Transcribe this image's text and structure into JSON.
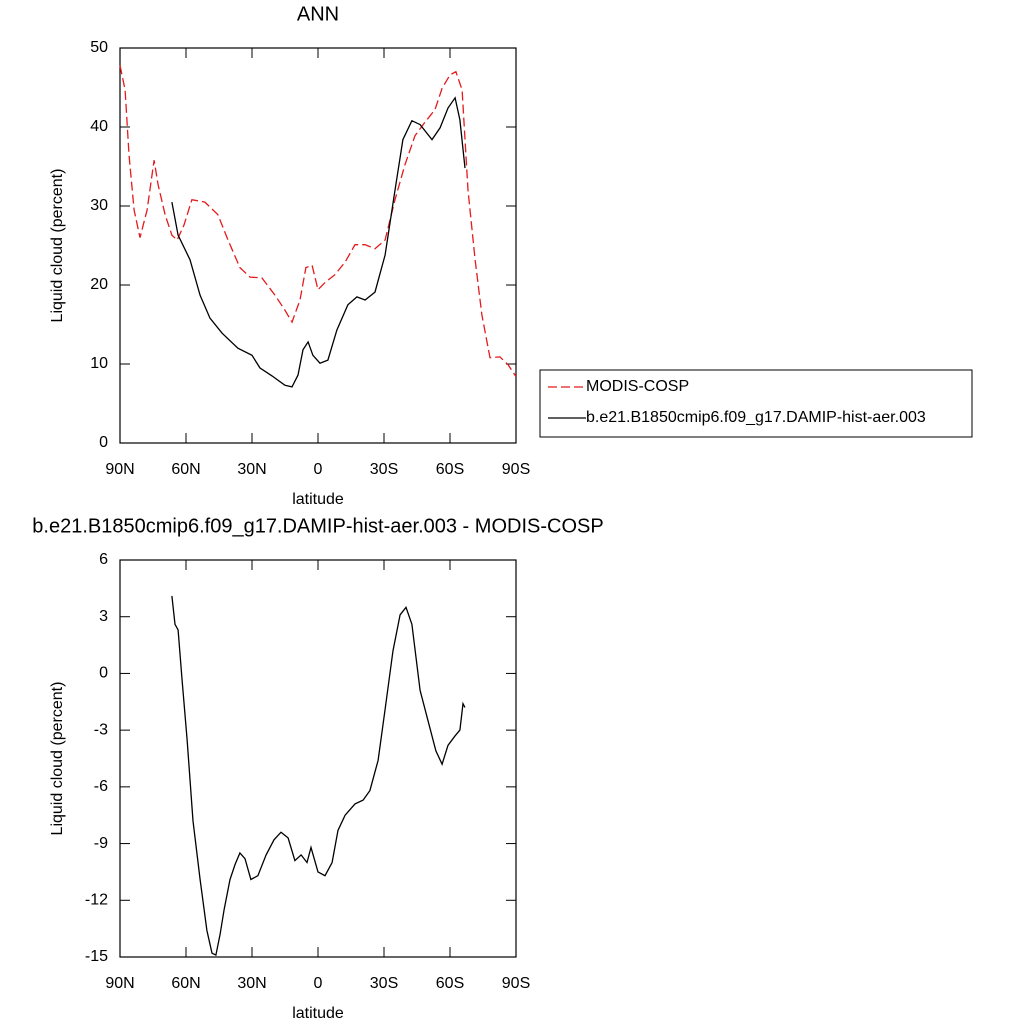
{
  "chart_data": [
    {
      "type": "line",
      "title": "ANN",
      "xlabel": "latitude",
      "ylabel": "Liquid cloud (percent)",
      "xlim": [
        90,
        -90
      ],
      "ylim": [
        0,
        50
      ],
      "xticks": [
        {
          "value": 90,
          "label": "90N"
        },
        {
          "value": 60,
          "label": "60N"
        },
        {
          "value": 30,
          "label": "30N"
        },
        0,
        {
          "value": -30,
          "label": "30S"
        },
        {
          "value": -60,
          "label": "60S"
        },
        {
          "value": -90,
          "label": "90S"
        }
      ],
      "yticks": [
        0,
        10,
        20,
        30,
        40,
        50
      ],
      "legend": "right",
      "series": [
        {
          "name": "MODIS-COSP",
          "color": "#e41a1c",
          "dash": true,
          "x": [
            90,
            87.7,
            85.9,
            83.6,
            80.9,
            77.7,
            74.5,
            72.7,
            69.5,
            66.4,
            64,
            60.9,
            57.3,
            51.4,
            45.5,
            40.9,
            35.5,
            30.9,
            25.5,
            19.5,
            15,
            11.8,
            8.2,
            5.5,
            2.7,
            0,
            -3.2,
            -7.7,
            -12.3,
            -16.8,
            -21.4,
            -25.9,
            -30.5,
            -35,
            -39.5,
            -44.1,
            -48.6,
            -53.2,
            -56.4,
            -60,
            -62.7,
            -65.5,
            -68.2,
            -71.4,
            -74.5,
            -78.2,
            -82.7,
            -86.4,
            -90
          ],
          "values": [
            47.8,
            44.7,
            36.5,
            29.5,
            26,
            29.5,
            35.8,
            32.7,
            28.9,
            26.3,
            25.7,
            27.6,
            30.8,
            30.5,
            28.9,
            25.7,
            22.2,
            21,
            20.9,
            18.7,
            16.8,
            15.3,
            18.1,
            22.2,
            22.5,
            19.4,
            20.3,
            21.3,
            22.9,
            25.1,
            25.1,
            24.6,
            25.7,
            30.8,
            35.2,
            38.9,
            40.6,
            42.2,
            44.9,
            46.6,
            47,
            44.7,
            32,
            23.2,
            16.2,
            10.8,
            10.9,
            9.9,
            8.4
          ]
        },
        {
          "name": "b.e21.B1850cmip6.f09_g17.DAMIP-hist-aer.003",
          "color": "#000000",
          "dash": false,
          "x": [
            66.4,
            63.6,
            58.2,
            53.6,
            49.1,
            43.6,
            36.4,
            30,
            26.4,
            20.9,
            15,
            11.8,
            9.1,
            6.8,
            4.5,
            2.3,
            -0.9,
            -4.5,
            -8.6,
            -13.6,
            -17.7,
            -21.4,
            -25.9,
            -30.5,
            -35,
            -38.6,
            -42.7,
            -46.4,
            -51.8,
            -55.5,
            -59.1,
            -62.3,
            -64.5,
            -66.8
          ],
          "values": [
            30.5,
            26.3,
            23.2,
            18.7,
            15.8,
            13.9,
            12,
            11.1,
            9.5,
            8.5,
            7.3,
            7.1,
            8.6,
            11.8,
            12.8,
            11.1,
            10.1,
            10.5,
            14.3,
            17.5,
            18.5,
            18.1,
            19.1,
            23.8,
            32,
            38.4,
            40.8,
            40.3,
            38.4,
            39.9,
            42.4,
            43.7,
            40.9,
            34.8
          ]
        }
      ]
    },
    {
      "type": "line",
      "title": "b.e21.B1850cmip6.f09_g17.DAMIP-hist-aer.003 - MODIS-COSP",
      "xlabel": "latitude",
      "ylabel": "Liquid cloud (percent)",
      "xlim": [
        90,
        -90
      ],
      "ylim": [
        -15,
        6
      ],
      "xticks": [
        {
          "value": 90,
          "label": "90N"
        },
        {
          "value": 60,
          "label": "60N"
        },
        {
          "value": 30,
          "label": "30N"
        },
        0,
        {
          "value": -30,
          "label": "30S"
        },
        {
          "value": -60,
          "label": "60S"
        },
        {
          "value": -90,
          "label": "90S"
        }
      ],
      "yticks": [
        -15,
        -12,
        -9,
        -6,
        -3,
        0,
        3,
        6
      ],
      "series": [
        {
          "color": "#000000",
          "dash": false,
          "x": [
            66.4,
            65,
            63.6,
            61.8,
            59.5,
            56.8,
            53.6,
            50.5,
            48.2,
            46.4,
            44.5,
            42.7,
            40,
            37.7,
            35.5,
            33.2,
            30.5,
            27.3,
            23.6,
            20,
            16.8,
            13.6,
            10.5,
            7.7,
            5,
            3.2,
            0,
            -3.2,
            -6.4,
            -9.1,
            -12.3,
            -16.8,
            -20.5,
            -23.6,
            -27.3,
            -30.5,
            -34.1,
            -37.3,
            -40,
            -42.7,
            -46.4,
            -50,
            -53.6,
            -56.4,
            -59.1,
            -62.3,
            -64.5,
            -65.9,
            -66.8
          ],
          "values": [
            4.1,
            2.6,
            2.3,
            -0.3,
            -3.5,
            -7.8,
            -10.9,
            -13.6,
            -14.8,
            -14.9,
            -13.8,
            -12.5,
            -10.9,
            -10.1,
            -9.5,
            -9.8,
            -10.9,
            -10.7,
            -9.6,
            -8.8,
            -8.4,
            -8.7,
            -9.9,
            -9.6,
            -10,
            -9.2,
            -10.5,
            -10.7,
            -10,
            -8.3,
            -7.5,
            -6.9,
            -6.7,
            -6.2,
            -4.6,
            -1.9,
            1.2,
            3.1,
            3.5,
            2.6,
            -0.9,
            -2.5,
            -4.1,
            -4.8,
            -3.8,
            -3.3,
            -3.0,
            -1.6,
            -1.8
          ]
        }
      ]
    }
  ]
}
